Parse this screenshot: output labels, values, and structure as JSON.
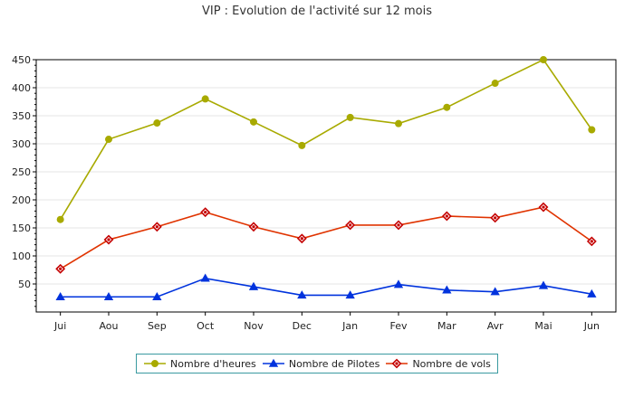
{
  "title": "VIP : Evolution de l'activité sur 12 mois",
  "chart_data": {
    "type": "line",
    "categories": [
      "Jui",
      "Aou",
      "Sep",
      "Oct",
      "Nov",
      "Dec",
      "Jan",
      "Fev",
      "Mar",
      "Avr",
      "Mai",
      "Jun"
    ],
    "ylim": [
      0,
      450
    ],
    "yticks": [
      50,
      100,
      150,
      200,
      250,
      300,
      350,
      400,
      450
    ],
    "grid": true,
    "legend_position": "bottom",
    "series": [
      {
        "name": "Nombre d'heures",
        "color": "#a8aa00",
        "marker": "circle",
        "values": [
          165,
          308,
          337,
          380,
          339,
          297,
          347,
          336,
          365,
          408,
          450,
          325
        ]
      },
      {
        "name": "Nombre de Pilotes",
        "color": "#0033dd",
        "marker": "triangle",
        "values": [
          27,
          27,
          27,
          60,
          45,
          30,
          30,
          49,
          39,
          36,
          47,
          32
        ]
      },
      {
        "name": "Nombre de vols",
        "color": "#e03300",
        "marker_color": "#c40000",
        "marker": "diamond",
        "values": [
          77,
          129,
          152,
          178,
          152,
          131,
          155,
          155,
          171,
          168,
          187,
          126
        ]
      }
    ]
  }
}
